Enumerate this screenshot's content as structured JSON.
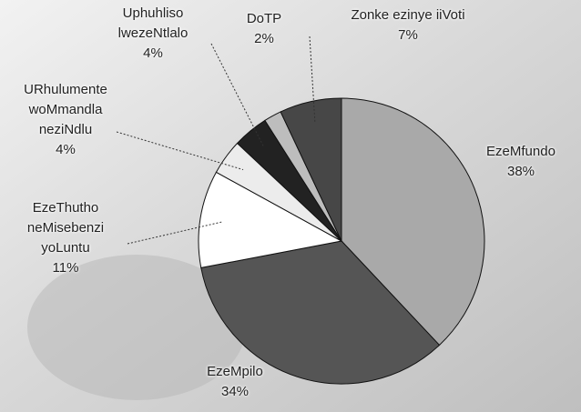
{
  "chart_data": {
    "type": "pie",
    "categories": [
      "EzeMfundo",
      "EzeMpilo",
      "EzeThutho neMisebenzi yoLuntu",
      "URhulumente woMmandla neziNdlu",
      "Uphuhliso lwezeNtlalo",
      "DoTP",
      "Zonke ezinye iiVoti"
    ],
    "values": [
      38,
      34,
      11,
      4,
      4,
      2,
      7
    ],
    "value_labels": [
      "38%",
      "34%",
      "11%",
      "4%",
      "4%",
      "2%",
      "7%"
    ],
    "colors": [
      "#a9a9a9",
      "#555555",
      "#ffffff",
      "#ececec",
      "#222222",
      "#bdbdbd",
      "#474747"
    ]
  }
}
